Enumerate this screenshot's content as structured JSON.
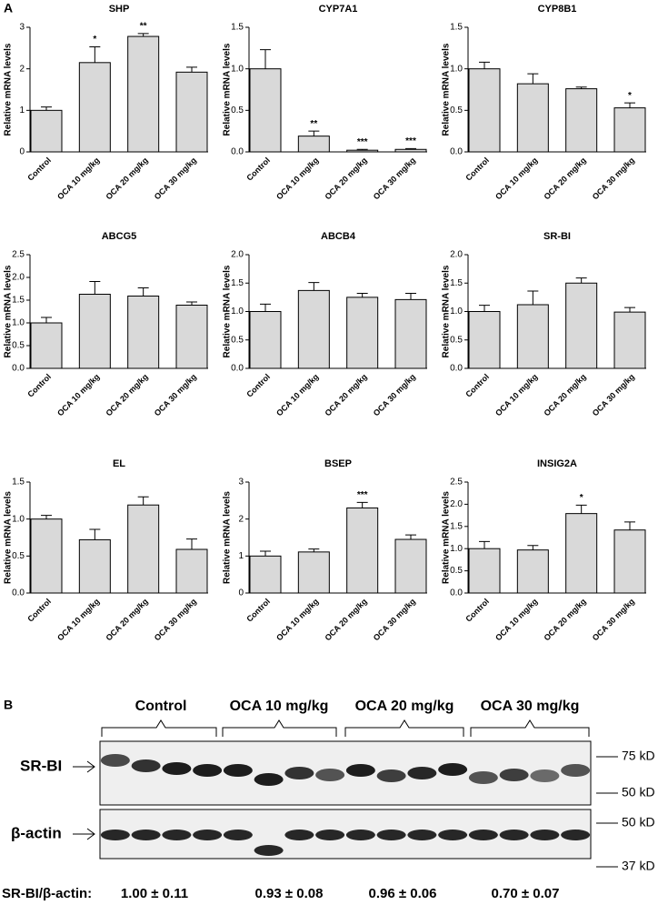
{
  "panel_labels": [
    "A",
    "B"
  ],
  "chart_data": [
    {
      "type": "bar",
      "title": "SHP",
      "ylabel": "Relative mRNA levels",
      "categories": [
        "Control",
        "OCA 10 mg/kg",
        "OCA 20 mg/kg",
        "OCA 30 mg/kg"
      ],
      "values": [
        1.0,
        2.15,
        2.78,
        1.92
      ],
      "errors": [
        0.08,
        0.38,
        0.07,
        0.12
      ],
      "significance": [
        null,
        "*",
        "**",
        null
      ],
      "color": "#d9d9d9",
      "ylim": [
        0,
        3
      ],
      "yticks": [
        0,
        1,
        2,
        3
      ]
    },
    {
      "type": "bar",
      "title": "CYP7A1",
      "ylabel": "Relative mRNA levels",
      "categories": [
        "Control",
        "OCA 10 mg/kg",
        "OCA 20 mg/kg",
        "OCA 30 mg/kg"
      ],
      "values": [
        1.0,
        0.19,
        0.02,
        0.03
      ],
      "errors": [
        0.23,
        0.06,
        0.01,
        0.01
      ],
      "significance": [
        null,
        "**",
        "***",
        "***"
      ],
      "color": "#d9d9d9",
      "ylim": [
        0,
        1.5
      ],
      "yticks": [
        {
          "value": 0,
          "label": "0.0"
        },
        0.5,
        {
          "value": 1,
          "label": "1.0"
        },
        1.5
      ]
    },
    {
      "type": "bar",
      "title": "CYP8B1",
      "ylabel": "Relative mRNA levels",
      "categories": [
        "Control",
        "OCA 10 mg/kg",
        "OCA 20 mg/kg",
        "OCA 30 mg/kg"
      ],
      "values": [
        1.0,
        0.82,
        0.76,
        0.53
      ],
      "errors": [
        0.08,
        0.12,
        0.02,
        0.06
      ],
      "significance": [
        null,
        null,
        null,
        "*"
      ],
      "color": "#d9d9d9",
      "ylim": [
        0,
        1.5
      ],
      "yticks": [
        {
          "value": 0,
          "label": "0.0"
        },
        0.5,
        {
          "value": 1,
          "label": "1.0"
        },
        1.5
      ]
    },
    {
      "type": "bar",
      "title": "ABCG5",
      "ylabel": "Relative mRNA levels",
      "categories": [
        "Control",
        "OCA 10 mg/kg",
        "OCA 20 mg/kg",
        "OCA 30 mg/kg"
      ],
      "values": [
        1.0,
        1.63,
        1.59,
        1.39
      ],
      "errors": [
        0.12,
        0.28,
        0.18,
        0.07
      ],
      "significance": [
        null,
        null,
        null,
        null
      ],
      "color": "#d9d9d9",
      "ylim": [
        0,
        2.5
      ],
      "yticks": [
        {
          "value": 0,
          "label": "0.0"
        },
        0.5,
        {
          "value": 1,
          "label": "1.0"
        },
        1.5,
        {
          "value": 2,
          "label": "2.0"
        },
        2.5
      ]
    },
    {
      "type": "bar",
      "title": "ABCB4",
      "ylabel": "Relative mRNA levels",
      "categories": [
        "Control",
        "OCA 10 mg/kg",
        "OCA 20 mg/kg",
        "OCA 30 mg/kg"
      ],
      "values": [
        1.0,
        1.37,
        1.25,
        1.21
      ],
      "errors": [
        0.13,
        0.14,
        0.07,
        0.11
      ],
      "significance": [
        null,
        null,
        null,
        null
      ],
      "color": "#d9d9d9",
      "ylim": [
        0,
        2
      ],
      "yticks": [
        {
          "value": 0,
          "label": "0.0"
        },
        0.5,
        {
          "value": 1,
          "label": "1.0"
        },
        1.5,
        {
          "value": 2,
          "label": "2.0"
        }
      ]
    },
    {
      "type": "bar",
      "title": "SR-BI",
      "ylabel": "Relative mRNA levels",
      "categories": [
        "Control",
        "OCA 10 mg/kg",
        "OCA 20 mg/kg",
        "OCA 30 mg/kg"
      ],
      "values": [
        1.0,
        1.12,
        1.5,
        0.99
      ],
      "errors": [
        0.11,
        0.24,
        0.09,
        0.08
      ],
      "significance": [
        null,
        null,
        null,
        null
      ],
      "color": "#d9d9d9",
      "ylim": [
        0,
        2
      ],
      "yticks": [
        {
          "value": 0,
          "label": "0.0"
        },
        0.5,
        {
          "value": 1,
          "label": "1.0"
        },
        1.5,
        {
          "value": 2,
          "label": "2.0"
        }
      ]
    },
    {
      "type": "bar",
      "title": "EL",
      "ylabel": "Relative mRNA levels",
      "categories": [
        "Control",
        "OCA 10 mg/kg",
        "OCA 20 mg/kg",
        "OCA 30 mg/kg"
      ],
      "values": [
        1.0,
        0.72,
        1.19,
        0.59
      ],
      "errors": [
        0.05,
        0.14,
        0.11,
        0.14
      ],
      "significance": [
        null,
        null,
        null,
        null
      ],
      "color": "#d9d9d9",
      "ylim": [
        0,
        1.5
      ],
      "yticks": [
        {
          "value": 0,
          "label": "0.0"
        },
        0.5,
        {
          "value": 1,
          "label": "1.0"
        },
        1.5
      ]
    },
    {
      "type": "bar",
      "title": "BSEP",
      "ylabel": "Relative mRNA levels",
      "categories": [
        "Control",
        "OCA 10 mg/kg",
        "OCA 20 mg/kg",
        "OCA 30 mg/kg"
      ],
      "values": [
        1.0,
        1.11,
        2.3,
        1.45
      ],
      "errors": [
        0.13,
        0.08,
        0.15,
        0.12
      ],
      "significance": [
        null,
        null,
        "***",
        null
      ],
      "color": "#d9d9d9",
      "ylim": [
        0,
        3
      ],
      "yticks": [
        0,
        1,
        2,
        3
      ]
    },
    {
      "type": "bar",
      "title": "INSIG2A",
      "ylabel": "Relative mRNA levels",
      "categories": [
        "Control",
        "OCA 10 mg/kg",
        "OCA 20 mg/kg",
        "OCA 30 mg/kg"
      ],
      "values": [
        1.0,
        0.97,
        1.79,
        1.42
      ],
      "errors": [
        0.16,
        0.1,
        0.19,
        0.18
      ],
      "significance": [
        null,
        null,
        "*",
        null
      ],
      "color": "#d9d9d9",
      "ylim": [
        0,
        2.5
      ],
      "yticks": [
        {
          "value": 0,
          "label": "0.0"
        },
        0.5,
        {
          "value": 1,
          "label": "1.0"
        },
        1.5,
        {
          "value": 2,
          "label": "2.0"
        },
        2.5
      ]
    }
  ],
  "blot": {
    "groups": [
      "Control",
      "OCA 10 mg/kg",
      "OCA 20 mg/kg",
      "OCA 30 mg/kg"
    ],
    "rows": [
      "SR-BI",
      "β-actin"
    ],
    "markers": [
      "75 kD",
      "50 kD",
      "50 kD",
      "37 kD"
    ],
    "ratio_label": "SR-BI/β-actin:",
    "ratios": [
      "1.00 ± 0.11",
      "0.93 ± 0.08",
      "0.96 ± 0.06",
      "0.70 ± 0.07"
    ]
  }
}
